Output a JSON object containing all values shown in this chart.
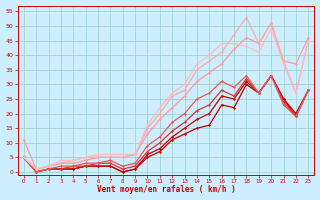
{
  "title": "",
  "xlabel": "Vent moyen/en rafales ( km/h )",
  "bg_color": "#cceeff",
  "grid_color": "#99cccc",
  "xlim": [
    -0.5,
    23.5
  ],
  "ylim": [
    -1,
    57
  ],
  "yticks": [
    0,
    5,
    10,
    15,
    20,
    25,
    30,
    35,
    40,
    45,
    50,
    55
  ],
  "xticks": [
    0,
    1,
    2,
    3,
    4,
    5,
    6,
    7,
    8,
    9,
    10,
    11,
    12,
    13,
    14,
    15,
    16,
    17,
    18,
    19,
    20,
    21,
    22,
    23
  ],
  "series": [
    {
      "x": [
        0,
        1,
        2,
        3,
        4,
        5,
        6,
        7,
        8,
        9,
        10,
        11,
        12,
        13,
        14,
        15,
        16,
        17,
        18,
        19,
        20,
        21,
        22,
        23
      ],
      "y": [
        5,
        0,
        1,
        1,
        1,
        2,
        2,
        2,
        0,
        1,
        5,
        7,
        11,
        13,
        15,
        16,
        23,
        22,
        30,
        27,
        33,
        25,
        20,
        28
      ],
      "color": "#bb0000",
      "lw": 0.9,
      "marker": "D",
      "ms": 1.5
    },
    {
      "x": [
        0,
        1,
        2,
        3,
        4,
        5,
        6,
        7,
        8,
        9,
        10,
        11,
        12,
        13,
        14,
        15,
        16,
        17,
        18,
        19,
        20,
        21,
        22,
        23
      ],
      "y": [
        5,
        0,
        1,
        1,
        1,
        2,
        2,
        2,
        0,
        1,
        6,
        8,
        12,
        15,
        18,
        20,
        26,
        25,
        31,
        27,
        33,
        25,
        19,
        28
      ],
      "color": "#cc0000",
      "lw": 0.9,
      "marker": "D",
      "ms": 1.5
    },
    {
      "x": [
        0,
        1,
        2,
        3,
        4,
        5,
        6,
        7,
        8,
        9,
        10,
        11,
        12,
        13,
        14,
        15,
        16,
        17,
        18,
        19,
        20,
        21,
        22,
        23
      ],
      "y": [
        5,
        0,
        1,
        1,
        2,
        2,
        3,
        3,
        1,
        2,
        7,
        10,
        14,
        17,
        21,
        23,
        28,
        26,
        32,
        27,
        33,
        24,
        19,
        28
      ],
      "color": "#dd3333",
      "lw": 0.9,
      "marker": "D",
      "ms": 1.5
    },
    {
      "x": [
        0,
        1,
        2,
        3,
        4,
        5,
        6,
        7,
        8,
        9,
        10,
        11,
        12,
        13,
        14,
        15,
        16,
        17,
        18,
        19,
        20,
        21,
        22,
        23
      ],
      "y": [
        5,
        0,
        1,
        2,
        2,
        3,
        3,
        4,
        2,
        3,
        9,
        12,
        17,
        20,
        25,
        27,
        31,
        29,
        33,
        27,
        33,
        23,
        19,
        28
      ],
      "color": "#ee5555",
      "lw": 0.9,
      "marker": "D",
      "ms": 1.5
    },
    {
      "x": [
        0,
        1,
        2,
        3,
        4,
        5,
        6,
        7,
        8,
        9,
        10,
        11,
        12,
        13,
        14,
        15,
        16,
        17,
        18,
        19,
        20,
        21,
        22,
        23
      ],
      "y": [
        11,
        1,
        2,
        3,
        3,
        4,
        5,
        5,
        5,
        6,
        13,
        18,
        22,
        26,
        31,
        34,
        37,
        42,
        46,
        44,
        51,
        38,
        37,
        46
      ],
      "color": "#ff9999",
      "lw": 0.9,
      "marker": "D",
      "ms": 1.5
    },
    {
      "x": [
        0,
        1,
        2,
        3,
        4,
        5,
        6,
        7,
        8,
        9,
        10,
        11,
        12,
        13,
        14,
        15,
        16,
        17,
        18,
        19,
        20,
        21,
        22,
        23
      ],
      "y": [
        5,
        1,
        2,
        3,
        4,
        5,
        5,
        5,
        5,
        6,
        15,
        20,
        26,
        28,
        35,
        38,
        41,
        47,
        53,
        44,
        51,
        38,
        27,
        45
      ],
      "color": "#ffaaaa",
      "lw": 0.9,
      "marker": "D",
      "ms": 1.5
    },
    {
      "x": [
        0,
        1,
        2,
        3,
        4,
        5,
        6,
        7,
        8,
        9,
        10,
        11,
        12,
        13,
        14,
        15,
        16,
        17,
        18,
        19,
        20,
        21,
        22,
        23
      ],
      "y": [
        5,
        1,
        2,
        4,
        4,
        5,
        6,
        6,
        6,
        6,
        16,
        22,
        27,
        30,
        37,
        40,
        44,
        44,
        43,
        41,
        49,
        37,
        27,
        45
      ],
      "color": "#ffbbbb",
      "lw": 0.9,
      "marker": "D",
      "ms": 1.5
    }
  ]
}
